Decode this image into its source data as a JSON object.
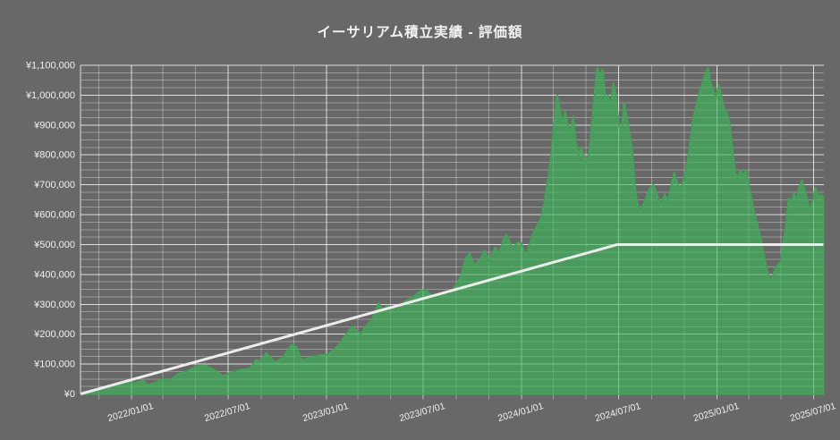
{
  "window": {
    "background": "#686868",
    "text_color": "#f1f1f1"
  },
  "chart_data": {
    "type": "area",
    "title": "イーサリアム積立実績  -  評価額",
    "legend": "none",
    "grid": {
      "horizontal_minor_step": 25000,
      "horizontal_major_step": 100000,
      "vertical_minor_interval_months": 2,
      "vertical_major_interval_months": 6
    },
    "y_axis": {
      "min": 0,
      "max": 1100000,
      "currency_prefix": "¥",
      "tick_labels": [
        "¥0",
        "¥100,000",
        "¥200,000",
        "¥300,000",
        "¥400,000",
        "¥500,000",
        "¥600,000",
        "¥700,000",
        "¥800,000",
        "¥900,000",
        "¥1,000,000",
        "¥1,100,000"
      ]
    },
    "x_axis": {
      "range": [
        "2021-09-28",
        "2025-07-20"
      ],
      "ticks": [
        {
          "label": "2022/01/01",
          "date": "2022-01-01"
        },
        {
          "label": "2022/07/01",
          "date": "2022-07-01"
        },
        {
          "label": "2023/01/01",
          "date": "2023-01-01"
        },
        {
          "label": "2023/07/01",
          "date": "2023-07-01"
        },
        {
          "label": "2024/01/01",
          "date": "2024-01-01"
        },
        {
          "label": "2024/07/01",
          "date": "2024-07-01"
        },
        {
          "label": "2025/01/01",
          "date": "2025-01-01"
        },
        {
          "label": "2025/07/01",
          "date": "2025-07-01"
        }
      ],
      "label_rotation_deg": -16
    },
    "series": [
      {
        "name": "評価額",
        "type": "area",
        "line_color": "#41a457",
        "fill_color": "rgba(56,185,88,0.62)",
        "points": [
          [
            "2021-09-28",
            1000
          ],
          [
            "2021-10-15",
            8000
          ],
          [
            "2021-11-01",
            15000
          ],
          [
            "2021-11-17",
            22000
          ],
          [
            "2021-12-04",
            30000
          ],
          [
            "2021-12-21",
            39000
          ],
          [
            "2022-01-07",
            36000
          ],
          [
            "2022-01-23",
            45000
          ],
          [
            "2022-02-01",
            30000
          ],
          [
            "2022-02-18",
            39000
          ],
          [
            "2022-03-01",
            51000
          ],
          [
            "2022-03-13",
            45000
          ],
          [
            "2022-03-29",
            66000
          ],
          [
            "2022-04-15",
            75000
          ],
          [
            "2022-05-01",
            90000
          ],
          [
            "2022-05-19",
            96000
          ],
          [
            "2022-06-05",
            80000
          ],
          [
            "2022-06-21",
            60000
          ],
          [
            "2022-07-08",
            72000
          ],
          [
            "2022-07-25",
            81000
          ],
          [
            "2022-08-11",
            84000
          ],
          [
            "2022-08-22",
            114000
          ],
          [
            "2022-09-01",
            110000
          ],
          [
            "2022-09-10",
            138000
          ],
          [
            "2022-09-27",
            105000
          ],
          [
            "2022-10-11",
            120000
          ],
          [
            "2022-10-28",
            165000
          ],
          [
            "2022-11-06",
            158000
          ],
          [
            "2022-11-16",
            111000
          ],
          [
            "2022-12-06",
            125000
          ],
          [
            "2022-12-23",
            130000
          ],
          [
            "2023-01-05",
            132000
          ],
          [
            "2023-01-25",
            165000
          ],
          [
            "2023-02-11",
            210000
          ],
          [
            "2023-02-19",
            225000
          ],
          [
            "2023-02-28",
            210000
          ],
          [
            "2023-03-07",
            200000
          ],
          [
            "2023-03-15",
            225000
          ],
          [
            "2023-03-28",
            250000
          ],
          [
            "2023-04-09",
            305000
          ],
          [
            "2023-04-17",
            280000
          ],
          [
            "2023-04-25",
            295000
          ],
          [
            "2023-05-04",
            285000
          ],
          [
            "2023-05-16",
            285000
          ],
          [
            "2023-05-29",
            310000
          ],
          [
            "2023-06-10",
            320000
          ],
          [
            "2023-06-23",
            340000
          ],
          [
            "2023-07-05",
            350000
          ],
          [
            "2023-07-17",
            330000
          ],
          [
            "2023-07-27",
            324000
          ],
          [
            "2023-08-08",
            339000
          ],
          [
            "2023-08-19",
            330000
          ],
          [
            "2023-08-30",
            360000
          ],
          [
            "2023-09-09",
            390000
          ],
          [
            "2023-09-19",
            455000
          ],
          [
            "2023-09-27",
            470000
          ],
          [
            "2023-10-04",
            430000
          ],
          [
            "2023-10-14",
            445000
          ],
          [
            "2023-10-24",
            480000
          ],
          [
            "2023-11-01",
            445000
          ],
          [
            "2023-11-13",
            490000
          ],
          [
            "2023-11-21",
            470000
          ],
          [
            "2023-11-29",
            520000
          ],
          [
            "2023-12-04",
            533000
          ],
          [
            "2023-12-11",
            505000
          ],
          [
            "2023-12-16",
            489000
          ],
          [
            "2023-12-24",
            505000
          ],
          [
            "2024-01-01",
            505000
          ],
          [
            "2024-01-09",
            460000
          ],
          [
            "2024-01-16",
            500000
          ],
          [
            "2024-01-24",
            540000
          ],
          [
            "2024-01-30",
            560000
          ],
          [
            "2024-02-07",
            590000
          ],
          [
            "2024-02-14",
            650000
          ],
          [
            "2024-02-21",
            730000
          ],
          [
            "2024-02-27",
            820000
          ],
          [
            "2024-03-02",
            900000
          ],
          [
            "2024-03-08",
            999000
          ],
          [
            "2024-03-14",
            940000
          ],
          [
            "2024-03-18",
            905000
          ],
          [
            "2024-03-23",
            944000
          ],
          [
            "2024-03-28",
            900000
          ],
          [
            "2024-04-02",
            870000
          ],
          [
            "2024-04-07",
            930000
          ],
          [
            "2024-04-12",
            840000
          ],
          [
            "2024-04-17",
            800000
          ],
          [
            "2024-04-22",
            825000
          ],
          [
            "2024-04-27",
            790000
          ],
          [
            "2024-05-02",
            772000
          ],
          [
            "2024-05-07",
            805000
          ],
          [
            "2024-05-12",
            900000
          ],
          [
            "2024-05-17",
            1000000
          ],
          [
            "2024-05-22",
            1092000
          ],
          [
            "2024-05-27",
            1060000
          ],
          [
            "2024-06-01",
            1085000
          ],
          [
            "2024-06-06",
            985000
          ],
          [
            "2024-06-11",
            1000000
          ],
          [
            "2024-06-16",
            960000
          ],
          [
            "2024-06-21",
            1040000
          ],
          [
            "2024-06-26",
            1000000
          ],
          [
            "2024-07-01",
            905000
          ],
          [
            "2024-07-06",
            870000
          ],
          [
            "2024-07-11",
            975000
          ],
          [
            "2024-07-16",
            930000
          ],
          [
            "2024-07-21",
            875000
          ],
          [
            "2024-07-26",
            820000
          ],
          [
            "2024-07-31",
            700000
          ],
          [
            "2024-08-05",
            640000
          ],
          [
            "2024-08-10",
            605000
          ],
          [
            "2024-08-15",
            630000
          ],
          [
            "2024-08-22",
            660000
          ],
          [
            "2024-08-29",
            690000
          ],
          [
            "2024-09-04",
            700000
          ],
          [
            "2024-09-11",
            665000
          ],
          [
            "2024-09-18",
            630000
          ],
          [
            "2024-09-25",
            668000
          ],
          [
            "2024-10-01",
            645000
          ],
          [
            "2024-10-08",
            700000
          ],
          [
            "2024-10-13",
            740000
          ],
          [
            "2024-10-20",
            700000
          ],
          [
            "2024-10-25",
            685000
          ],
          [
            "2024-11-01",
            725000
          ],
          [
            "2024-11-08",
            790000
          ],
          [
            "2024-11-13",
            855000
          ],
          [
            "2024-11-18",
            925000
          ],
          [
            "2024-11-23",
            960000
          ],
          [
            "2024-11-28",
            1000000
          ],
          [
            "2024-12-03",
            1030000
          ],
          [
            "2024-12-10",
            1070000
          ],
          [
            "2024-12-15",
            1091000
          ],
          [
            "2024-12-20",
            1040000
          ],
          [
            "2024-12-25",
            1018000
          ],
          [
            "2024-12-30",
            990000
          ],
          [
            "2025-01-04",
            1035000
          ],
          [
            "2025-01-09",
            1000000
          ],
          [
            "2025-01-14",
            958000
          ],
          [
            "2025-01-19",
            940000
          ],
          [
            "2025-01-24",
            910000
          ],
          [
            "2025-01-29",
            832000
          ],
          [
            "2025-02-04",
            740000
          ],
          [
            "2025-02-09",
            722000
          ],
          [
            "2025-02-14",
            748000
          ],
          [
            "2025-02-19",
            730000
          ],
          [
            "2025-02-24",
            748000
          ],
          [
            "2025-03-01",
            700000
          ],
          [
            "2025-03-06",
            660000
          ],
          [
            "2025-03-11",
            612000
          ],
          [
            "2025-03-16",
            580000
          ],
          [
            "2025-03-21",
            540000
          ],
          [
            "2025-03-26",
            500000
          ],
          [
            "2025-03-31",
            452000
          ],
          [
            "2025-04-05",
            412000
          ],
          [
            "2025-04-10",
            378000
          ],
          [
            "2025-04-15",
            392000
          ],
          [
            "2025-04-20",
            420000
          ],
          [
            "2025-04-25",
            432000
          ],
          [
            "2025-04-30",
            442000
          ],
          [
            "2025-05-05",
            500000
          ],
          [
            "2025-05-10",
            560000
          ],
          [
            "2025-05-15",
            655000
          ],
          [
            "2025-05-20",
            640000
          ],
          [
            "2025-05-25",
            672000
          ],
          [
            "2025-05-30",
            648000
          ],
          [
            "2025-06-04",
            690000
          ],
          [
            "2025-06-09",
            715000
          ],
          [
            "2025-06-14",
            680000
          ],
          [
            "2025-06-19",
            650000
          ],
          [
            "2025-06-24",
            612000
          ],
          [
            "2025-06-29",
            645000
          ],
          [
            "2025-07-04",
            690000
          ],
          [
            "2025-07-10",
            662000
          ],
          [
            "2025-07-16",
            665000
          ],
          [
            "2025-07-19",
            660000
          ]
        ]
      },
      {
        "name": "white-reference-line (unlabeled cumulative amount)",
        "type": "line",
        "line_color": "#ececec",
        "points": [
          [
            "2021-09-28",
            0
          ],
          [
            "2024-06-28",
            500000
          ],
          [
            "2025-07-19",
            500000
          ]
        ]
      }
    ]
  }
}
